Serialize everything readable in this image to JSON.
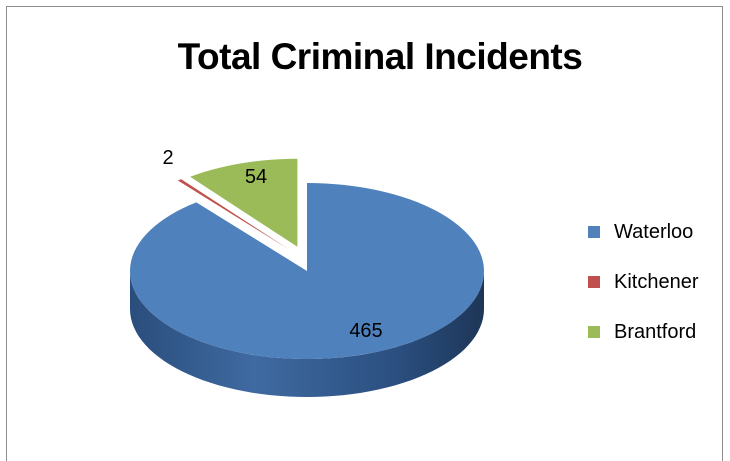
{
  "chart_data": {
    "type": "pie",
    "title": "Total Criminal Incidents",
    "categories": [
      "Waterloo",
      "Kitchener",
      "Brantford"
    ],
    "values": [
      465,
      2,
      54
    ],
    "colors": [
      "#4f81bd",
      "#c0504d",
      "#9bbb59"
    ],
    "exploded": true,
    "three_d": true,
    "legend_position": "right"
  }
}
